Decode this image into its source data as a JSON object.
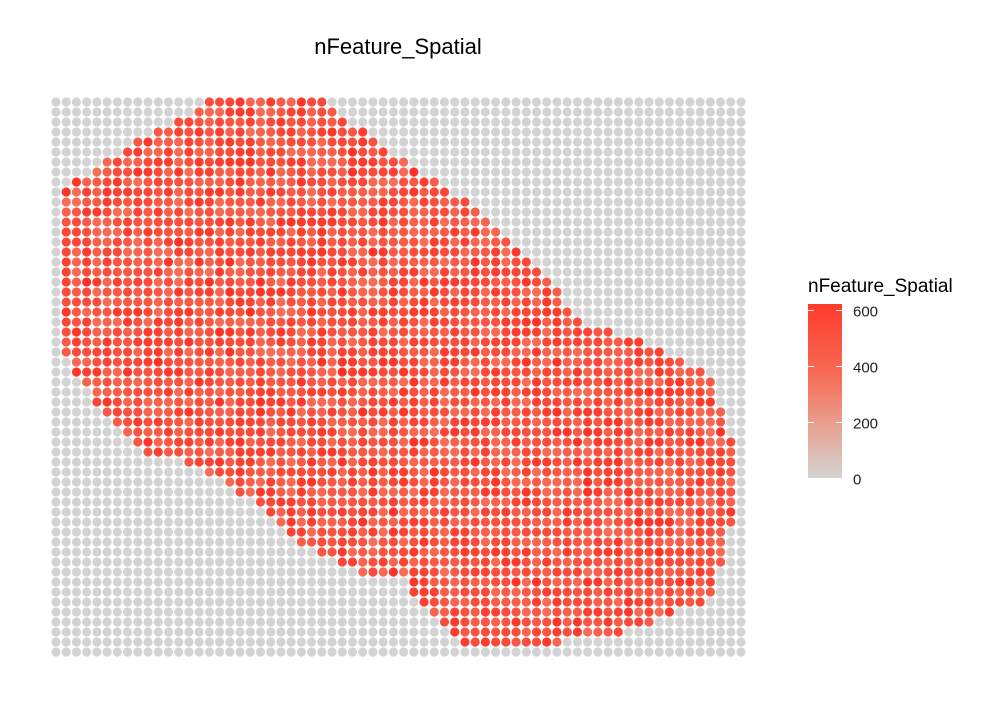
{
  "chart_data": {
    "type": "scatter",
    "title": "nFeature_Spatial",
    "legend": {
      "title": "nFeature_Spatial",
      "placement": "right",
      "ticks": [
        "0",
        "200",
        "400",
        "600"
      ],
      "tick_values": [
        0,
        200,
        400,
        600
      ],
      "range": [
        0,
        620
      ]
    },
    "colors": {
      "low": "#d3d3d3",
      "high": "#ff2a1e",
      "background_spot": "#d3d3d3"
    },
    "grid": false,
    "spot_grid": {
      "columns": 68,
      "rows": 56
    },
    "tissue_outline": [
      [
        17,
        0
      ],
      [
        31,
        0
      ],
      [
        37,
        4
      ],
      [
        47,
        9
      ],
      [
        55,
        15
      ],
      [
        60,
        20
      ],
      [
        68,
        22
      ],
      [
        75,
        25
      ],
      [
        76,
        29
      ],
      [
        78,
        33
      ],
      [
        77,
        38
      ],
      [
        75,
        45
      ],
      [
        66,
        48
      ],
      [
        58,
        49
      ],
      [
        51,
        50
      ],
      [
        47,
        50
      ],
      [
        42,
        46
      ],
      [
        39,
        43
      ],
      [
        35,
        43
      ],
      [
        27,
        40
      ],
      [
        22,
        36
      ],
      [
        16,
        33
      ],
      [
        10,
        32
      ],
      [
        5,
        28
      ],
      [
        1,
        23
      ],
      [
        0,
        16
      ],
      [
        1,
        8
      ],
      [
        6,
        5
      ],
      [
        13,
        2
      ]
    ],
    "value_range_in_tissue": [
      250,
      600
    ]
  }
}
